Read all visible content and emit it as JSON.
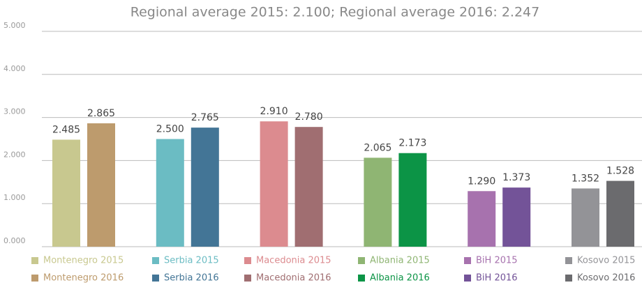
{
  "chart_data": {
    "type": "bar",
    "title": "Regional average 2015: 2.100; Regional average 2016: 2.247",
    "ylim": [
      0,
      5
    ],
    "yticks": [
      {
        "value": 0,
        "label": "0.000"
      },
      {
        "value": 1,
        "label": "1.000"
      },
      {
        "value": 2,
        "label": "2.000"
      },
      {
        "value": 3,
        "label": "3.000"
      },
      {
        "value": 4,
        "label": "4.000"
      },
      {
        "value": 5,
        "label": "5.000"
      }
    ],
    "grid": true,
    "series": [
      {
        "name": "Montenegro 2015",
        "color": "#c8c88f",
        "value": 2.485,
        "value_label": "2.485"
      },
      {
        "name": "Montenegro 2016",
        "color": "#bd9b6d",
        "value": 2.865,
        "value_label": "2.865"
      },
      {
        "name": "Serbia 2015",
        "color": "#6bbcc3",
        "value": 2.5,
        "value_label": "2.500"
      },
      {
        "name": "Serbia 2016",
        "color": "#437596",
        "value": 2.765,
        "value_label": "2.765"
      },
      {
        "name": "Macedonia 2015",
        "color": "#dc8b8f",
        "value": 2.91,
        "value_label": "2.910"
      },
      {
        "name": "Macedonia 2016",
        "color": "#a06e71",
        "value": 2.78,
        "value_label": "2.780"
      },
      {
        "name": "Albania 2015",
        "color": "#8fb573",
        "value": 2.065,
        "value_label": "2.065"
      },
      {
        "name": "Albania 2016",
        "color": "#0c9446",
        "value": 2.173,
        "value_label": "2.173"
      },
      {
        "name": "BiH 2015",
        "color": "#a772ae",
        "value": 1.29,
        "value_label": "1.290"
      },
      {
        "name": "BiH 2016",
        "color": "#735398",
        "value": 1.373,
        "value_label": "1.373"
      },
      {
        "name": "Kosovo 2015",
        "color": "#939397",
        "value": 1.352,
        "value_label": "1.352"
      },
      {
        "name": "Kosovo 2016",
        "color": "#6b6b6e",
        "value": 1.528,
        "value_label": "1.528"
      }
    ]
  }
}
